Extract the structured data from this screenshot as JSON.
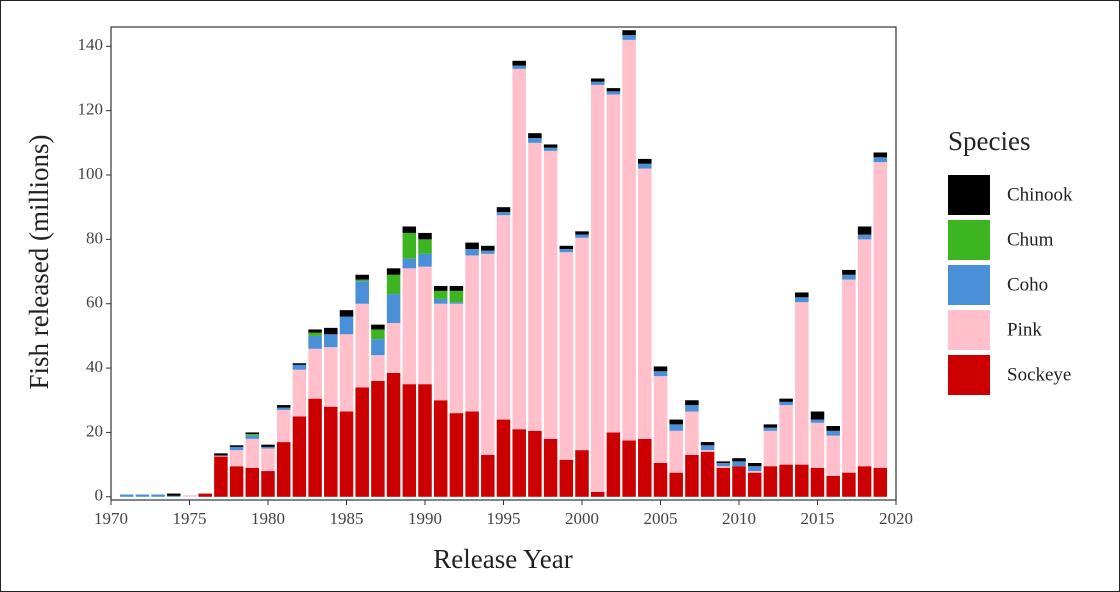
{
  "chart_data": {
    "type": "stacked_bar",
    "x_label": "Release Year",
    "y_label": "Fish released (millions)",
    "legend_title": "Species",
    "legend": "right",
    "x": [
      1971,
      1972,
      1973,
      1974,
      1975,
      1976,
      1977,
      1978,
      1979,
      1980,
      1981,
      1982,
      1983,
      1984,
      1985,
      1986,
      1987,
      1988,
      1989,
      1990,
      1991,
      1992,
      1993,
      1994,
      1995,
      1996,
      1997,
      1998,
      1999,
      2000,
      2001,
      2002,
      2003,
      2004,
      2005,
      2006,
      2007,
      2008,
      2009,
      2010,
      2011,
      2012,
      2013,
      2014,
      2015,
      2016,
      2017,
      2018,
      2019
    ],
    "series": [
      {
        "name": "Sockeye",
        "color": "#cc0000",
        "values": [
          0,
          0,
          0,
          0,
          0,
          1,
          12.5,
          9.5,
          9,
          8,
          17,
          25,
          30.5,
          28,
          26.5,
          34,
          36,
          38.5,
          35,
          35,
          30,
          26,
          26.5,
          13,
          24,
          21,
          20.5,
          18,
          11.5,
          14.5,
          1.5,
          20,
          17.5,
          18,
          10.5,
          7.5,
          13,
          14,
          9,
          9.5,
          7.5,
          9.5,
          10,
          10,
          9,
          6.5,
          7.5,
          9.5,
          9
        ]
      },
      {
        "name": "Pink",
        "color": "#ffc0cb",
        "values": [
          0,
          0,
          0,
          0,
          0.5,
          0,
          0.3,
          5,
          9,
          7,
          10,
          14.5,
          15.5,
          18.5,
          24,
          26,
          8,
          15.5,
          36,
          36.5,
          30,
          34,
          48.5,
          62.5,
          63.5,
          112,
          89.5,
          89.5,
          64.5,
          66,
          126.5,
          105,
          124.5,
          84,
          27,
          13,
          13.5,
          0.5,
          0.5,
          0,
          0.5,
          11,
          18.5,
          50.5,
          14,
          12.5,
          60,
          70.5,
          95
        ]
      },
      {
        "name": "Coho",
        "color": "#4a90d9",
        "values": [
          0.7,
          0.7,
          0.7,
          0.3,
          0,
          0,
          0,
          1,
          1,
          0.5,
          0.7,
          1.5,
          4,
          4,
          5.5,
          7,
          5,
          9,
          3,
          4,
          1.5,
          0.5,
          2,
          1,
          1,
          1,
          1.5,
          1,
          1,
          1,
          1,
          1,
          1.5,
          1.5,
          1.5,
          2,
          2,
          1.5,
          1,
          1.5,
          1.5,
          1,
          1,
          1.5,
          1,
          1.5,
          1.5,
          1.5,
          1.5
        ]
      },
      {
        "name": "Chum",
        "color": "#3cb521",
        "values": [
          0,
          0,
          0,
          0,
          0,
          0,
          0,
          0,
          0.5,
          0,
          0,
          0,
          1,
          0,
          0,
          0.5,
          3,
          6,
          8,
          4.5,
          2.5,
          3.5,
          0,
          0,
          0,
          0,
          0,
          0,
          0,
          0,
          0,
          0,
          0,
          0,
          0,
          0,
          0,
          0,
          0,
          0,
          0,
          0,
          0,
          0,
          0,
          0,
          0,
          0,
          0
        ]
      },
      {
        "name": "Chinook",
        "color": "#000000",
        "values": [
          0,
          0,
          0,
          0.7,
          0,
          0,
          0.7,
          0.5,
          0.5,
          0.7,
          0.8,
          0.5,
          1,
          2,
          2,
          1.5,
          1.5,
          2,
          2,
          2,
          1.5,
          1.5,
          2,
          1.5,
          1.5,
          1.5,
          1.5,
          1,
          1,
          1,
          1,
          1,
          1.5,
          1.5,
          1.5,
          1.5,
          1.5,
          1,
          0.5,
          1,
          1,
          1,
          1,
          1.5,
          2.5,
          1.5,
          1.5,
          2.5,
          1.5
        ]
      }
    ],
    "xlim": [
      1970,
      2020
    ],
    "xticks": [
      1970,
      1975,
      1980,
      1985,
      1990,
      1995,
      2000,
      2005,
      2010,
      2015,
      2020
    ],
    "ylim": [
      -1,
      146
    ],
    "yticks": [
      0,
      20,
      40,
      60,
      80,
      100,
      120,
      140
    ]
  }
}
